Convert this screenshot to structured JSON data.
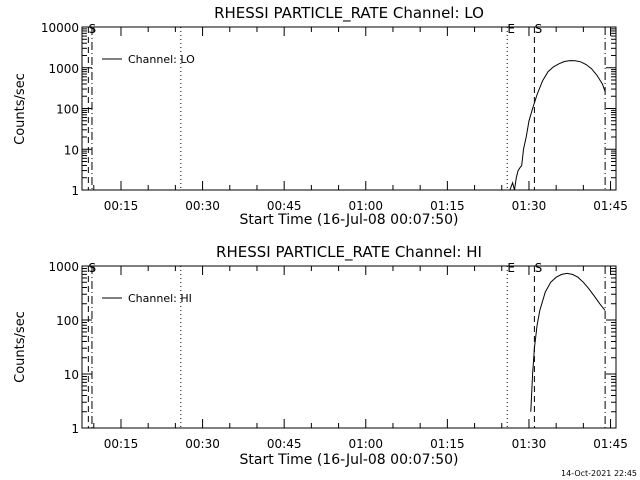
{
  "chart_data": [
    {
      "type": "line",
      "title": "RHESSI PARTICLE_RATE Channel: LO",
      "xlabel": "Start Time (16-Jul-08 00:07:50)",
      "ylabel": "Counts/sec",
      "y_scale": "log",
      "ylim": [
        1,
        10000
      ],
      "xlim": [
        "00:07:50",
        "01:46:00"
      ],
      "y_ticks": [
        "1",
        "10",
        "100",
        "1000",
        "10000"
      ],
      "x_ticks": [
        "00:15",
        "00:30",
        "00:45",
        "01:00",
        "01:15",
        "01:30",
        "01:45"
      ],
      "legend": {
        "position": "top-left",
        "entries": [
          "Channel: LO"
        ]
      },
      "markers": [
        {
          "label": "S",
          "time": "00:09:00",
          "style": "dashed"
        },
        {
          "label": "",
          "time": "00:09:40",
          "style": "dash-dot"
        },
        {
          "label": "",
          "time": "00:26:00",
          "style": "dotted"
        },
        {
          "label": "E",
          "time": "01:26:00",
          "style": "dotted"
        },
        {
          "label": "S",
          "time": "01:31:00",
          "style": "dashed"
        },
        {
          "label": "",
          "time": "01:44:00",
          "style": "dash-dot"
        }
      ],
      "series": [
        {
          "name": "Channel: LO",
          "x": [
            "01:26:30",
            "01:27:00",
            "01:27:20",
            "01:27:40",
            "01:28:00",
            "01:28:20",
            "01:28:40",
            "01:29:00",
            "01:29:30",
            "01:30:00",
            "01:30:40",
            "01:31:30",
            "01:32:30",
            "01:33:30",
            "01:34:30",
            "01:35:30",
            "01:36:30",
            "01:37:30",
            "01:38:30",
            "01:39:30",
            "01:40:30",
            "01:41:30",
            "01:42:30",
            "01:43:30",
            "01:44:00"
          ],
          "values": [
            1,
            1.5,
            1,
            2,
            3,
            3.5,
            4,
            10,
            20,
            50,
            100,
            220,
            480,
            800,
            1050,
            1250,
            1420,
            1500,
            1480,
            1400,
            1200,
            950,
            650,
            400,
            260
          ]
        }
      ]
    },
    {
      "type": "line",
      "title": "RHESSI PARTICLE_RATE Channel: HI",
      "xlabel": "Start Time (16-Jul-08 00:07:50)",
      "ylabel": "Counts/sec",
      "y_scale": "log",
      "ylim": [
        1,
        1000
      ],
      "xlim": [
        "00:07:50",
        "01:46:00"
      ],
      "y_ticks": [
        "1",
        "10",
        "100",
        "1000"
      ],
      "x_ticks": [
        "00:15",
        "00:30",
        "00:45",
        "01:00",
        "01:15",
        "01:30",
        "01:45"
      ],
      "legend": {
        "position": "top-left",
        "entries": [
          "Channel: HI"
        ]
      },
      "markers": [
        {
          "label": "S",
          "time": "00:09:00",
          "style": "dashed"
        },
        {
          "label": "",
          "time": "00:09:40",
          "style": "dash-dot"
        },
        {
          "label": "",
          "time": "00:26:00",
          "style": "dotted"
        },
        {
          "label": "E",
          "time": "01:26:00",
          "style": "dotted"
        },
        {
          "label": "S",
          "time": "01:31:00",
          "style": "dashed"
        },
        {
          "label": "",
          "time": "01:44:00",
          "style": "dash-dot"
        }
      ],
      "series": [
        {
          "name": "Channel: HI",
          "x": [
            "01:30:20",
            "01:30:40",
            "01:31:00",
            "01:31:30",
            "01:32:00",
            "01:33:00",
            "01:34:00",
            "01:35:00",
            "01:36:00",
            "01:37:00",
            "01:38:00",
            "01:39:00",
            "01:40:00",
            "01:41:00",
            "01:42:00",
            "01:43:00",
            "01:44:00"
          ],
          "values": [
            2,
            10,
            30,
            80,
            150,
            330,
            500,
            620,
            700,
            730,
            700,
            620,
            500,
            380,
            280,
            200,
            150
          ]
        }
      ]
    }
  ],
  "footer": {
    "timestamp": "14-Oct-2021 22:45"
  }
}
